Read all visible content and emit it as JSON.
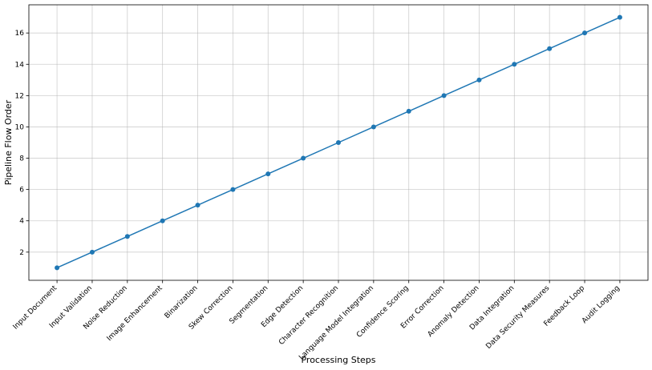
{
  "chart_data": {
    "type": "line",
    "x_label": "Processing Steps",
    "y_label": "Pipeline Flow Order",
    "categories": [
      "Input Document",
      "Input Validation",
      "Noise Reduction",
      "Image Enhancement",
      "Binarization",
      "Skew Correction",
      "Segmentation",
      "Edge Detection",
      "Character Recognition",
      "Language Model Integration",
      "Confidence Scoring",
      "Error Correction",
      "Anomaly Detection",
      "Data Integration",
      "Data Security Measures",
      "Feedback Loop",
      "Audit Logging"
    ],
    "series": [
      {
        "color": "#1f77b4",
        "values": [
          1,
          2,
          3,
          4,
          5,
          6,
          7,
          8,
          9,
          10,
          11,
          12,
          13,
          14,
          15,
          16,
          17
        ]
      }
    ],
    "ylim": [
      0.2,
      17.8
    ],
    "yticks": [
      2,
      4,
      6,
      8,
      10,
      12,
      14,
      16
    ],
    "grid": true
  }
}
